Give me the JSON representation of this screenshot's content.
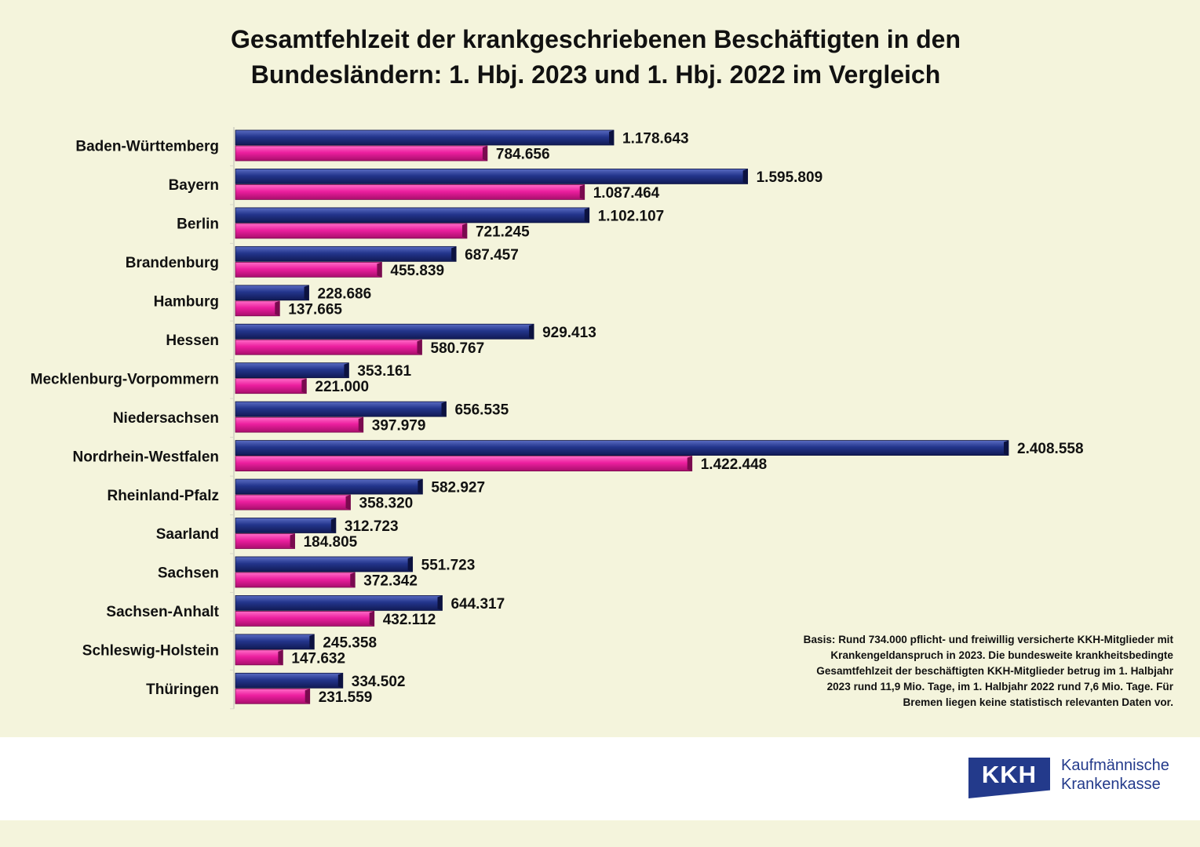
{
  "title_lines": [
    "Gesamtfehlzeit der krankgeschriebenen Beschäftigten in den",
    "Bundesländern: 1. Hbj. 2023 und 1. Hbj. 2022 im Vergleich"
  ],
  "chart_data": {
    "type": "bar",
    "orientation": "horizontal",
    "title": "Gesamtfehlzeit der krankgeschriebenen Beschäftigten in den Bundesländern: 1. Hbj. 2023 und 1. Hbj. 2022 im Vergleich",
    "categories": [
      "Baden-Württemberg",
      "Bayern",
      "Berlin",
      "Brandenburg",
      "Hamburg",
      "Hessen",
      "Mecklenburg-Vorpommern",
      "Niedersachsen",
      "Nordrhein-Westfalen",
      "Rheinland-Pfalz",
      "Saarland",
      "Sachsen",
      "Sachsen-Anhalt",
      "Schleswig-Holstein",
      "Thüringen"
    ],
    "series": [
      {
        "values": [
          1178643,
          1595809,
          1102107,
          687457,
          228686,
          929413,
          353161,
          656535,
          2408558,
          582927,
          312723,
          551723,
          644317,
          245358,
          334502
        ],
        "labels": [
          "1.178.643",
          "1.595.809",
          "1.102.107",
          "687.457",
          "228.686",
          "929.413",
          "353.161",
          "656.535",
          "2.408.558",
          "582.927",
          "312.723",
          "551.723",
          "644.317",
          "245.358",
          "334.502"
        ],
        "color": "#1f2d7a"
      },
      {
        "values": [
          784656,
          1087464,
          721245,
          455839,
          137665,
          580767,
          221000,
          397979,
          1422448,
          358320,
          184805,
          372342,
          432112,
          147632,
          231559
        ],
        "labels": [
          "784.656",
          "1.087.464",
          "721.245",
          "455.839",
          "137.665",
          "580.767",
          "221.000",
          "397.979",
          "1.422.448",
          "358.320",
          "184.805",
          "372.342",
          "432.112",
          "147.632",
          "231.559"
        ],
        "color": "#e8199a"
      }
    ],
    "xlim": [
      0,
      2408558
    ],
    "grid": false,
    "legend": "none"
  },
  "note": {
    "lines": [
      "Basis: Rund 734.000 pflicht- und freiwillig versicherte KKH-Mitglieder mit",
      "Krankengeldanspruch in 2023. Die bundesweite krankheitsbedingte",
      "Gesamtfehlzeit der beschäftigten KKH-Mitglieder betrug im 1. Halbjahr",
      "2023 rund 11,9 Mio. Tage, im 1. Halbjahr 2022 rund 7,6 Mio. Tage. Für",
      "Bremen liegen keine statistisch relevanten Daten vor."
    ]
  },
  "logo": {
    "badge": "KKH",
    "line1": "Kaufmännische",
    "line2": "Krankenkasse",
    "color": "#233a8b"
  }
}
